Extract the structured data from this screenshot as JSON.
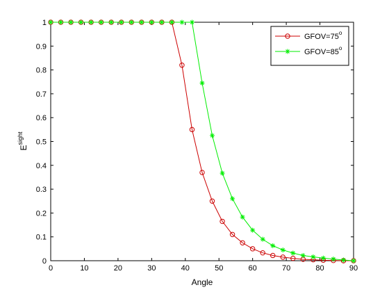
{
  "chart_data": {
    "type": "line",
    "xlabel": "Angle",
    "ylabel": "E",
    "ylabel_superscript": "sight",
    "xlim": [
      0,
      90
    ],
    "ylim": [
      0,
      1
    ],
    "xticks": [
      0,
      10,
      20,
      30,
      40,
      50,
      60,
      70,
      80,
      90
    ],
    "yticks": [
      0,
      0.1,
      0.2,
      0.3,
      0.4,
      0.5,
      0.6,
      0.7,
      0.8,
      0.9,
      1
    ],
    "grid": false,
    "legend_position": "top-right",
    "series": [
      {
        "name": "GFOV=75",
        "name_superscript": "o",
        "color": "#cc0000",
        "marker": "circle",
        "x": [
          0,
          3,
          6,
          9,
          12,
          15,
          18,
          21,
          24,
          27,
          30,
          33,
          36,
          39,
          42,
          45,
          48,
          51,
          54,
          57,
          60,
          63,
          66,
          69,
          72,
          75,
          78,
          81,
          84,
          87,
          90
        ],
        "y": [
          1,
          1,
          1,
          1,
          1,
          1,
          1,
          1,
          1,
          1,
          1,
          1,
          1,
          0.82,
          0.55,
          0.37,
          0.25,
          0.165,
          0.11,
          0.075,
          0.05,
          0.033,
          0.022,
          0.015,
          0.01,
          0.006,
          0.004,
          0.002,
          0.001,
          0,
          0
        ]
      },
      {
        "name": "GFOV=85",
        "name_superscript": "o",
        "color": "#00ee00",
        "marker": "asterisk",
        "x": [
          0,
          3,
          6,
          9,
          12,
          15,
          18,
          21,
          24,
          27,
          30,
          33,
          36,
          39,
          42,
          45,
          48,
          51,
          54,
          57,
          60,
          63,
          66,
          69,
          72,
          75,
          78,
          81,
          84,
          87,
          90
        ],
        "y": [
          1,
          1,
          1,
          1,
          1,
          1,
          1,
          1,
          1,
          1,
          1,
          1,
          1,
          1,
          1,
          0.745,
          0.525,
          0.367,
          0.26,
          0.183,
          0.128,
          0.09,
          0.063,
          0.045,
          0.032,
          0.022,
          0.016,
          0.011,
          0.007,
          0.003,
          0
        ]
      }
    ]
  }
}
